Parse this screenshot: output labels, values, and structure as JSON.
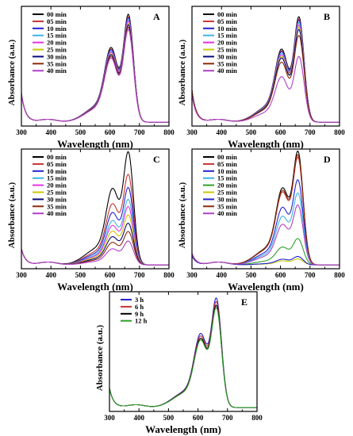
{
  "chart_data": [
    {
      "type": "line",
      "panel_label": "A",
      "xlabel": "Wavelength (nm)",
      "ylabel": "Absorbance (a.u.)",
      "xlim": [
        300,
        800
      ],
      "xticks": [
        300,
        400,
        500,
        600,
        700,
        800
      ],
      "y_tick_labels": false,
      "legend_position": "top-left",
      "peak_nm": 663,
      "shoulder_nm": 605,
      "series": [
        {
          "name": "00 min",
          "color": "#000000",
          "peak": 0.92,
          "uv": 0.25
        },
        {
          "name": "05 min",
          "color": "#c83232",
          "peak": 0.9,
          "uv": 0.25
        },
        {
          "name": "10 min",
          "color": "#2323d2",
          "peak": 0.89,
          "uv": 0.25
        },
        {
          "name": "15 min",
          "color": "#3cb4e6",
          "peak": 0.87,
          "uv": 0.25
        },
        {
          "name": "20 min",
          "color": "#e632e6",
          "peak": 0.86,
          "uv": 0.25
        },
        {
          "name": "25 min",
          "color": "#c8c800",
          "peak": 0.84,
          "uv": 0.25
        },
        {
          "name": "30 min",
          "color": "#0a0a7a",
          "peak": 0.83,
          "uv": 0.25
        },
        {
          "name": "35 min",
          "color": "#8b2a0a",
          "peak": 0.81,
          "uv": 0.25
        },
        {
          "name": "40 min",
          "color": "#b040c8",
          "peak": 0.79,
          "uv": 0.25
        }
      ]
    },
    {
      "type": "line",
      "panel_label": "B",
      "xlabel": "Wavelength (nm)",
      "ylabel": "Absorbance (a.u.)",
      "xlim": [
        300,
        800
      ],
      "xticks": [
        300,
        400,
        500,
        600,
        700,
        800
      ],
      "y_tick_labels": false,
      "legend_position": "top-left",
      "peak_nm": 663,
      "shoulder_nm": 605,
      "series": [
        {
          "name": "00 min",
          "color": "#000000",
          "peak": 0.9,
          "uv": 0.28
        },
        {
          "name": "05 min",
          "color": "#c83232",
          "peak": 0.88,
          "uv": 0.28
        },
        {
          "name": "10 min",
          "color": "#2323d2",
          "peak": 0.87,
          "uv": 0.28
        },
        {
          "name": "15 min",
          "color": "#3cb4e6",
          "peak": 0.85,
          "uv": 0.28
        },
        {
          "name": "20 min",
          "color": "#e632e6",
          "peak": 0.83,
          "uv": 0.28
        },
        {
          "name": "25 min",
          "color": "#c8c800",
          "peak": 0.81,
          "uv": 0.28
        },
        {
          "name": "30 min",
          "color": "#0a0a7a",
          "peak": 0.79,
          "uv": 0.28
        },
        {
          "name": "35 min",
          "color": "#8b2a0a",
          "peak": 0.74,
          "uv": 0.28
        },
        {
          "name": "40 min",
          "color": "#b040c8",
          "peak": 0.56,
          "uv": 0.24
        }
      ]
    },
    {
      "type": "line",
      "panel_label": "C",
      "xlabel": "Wavelength (nm)",
      "ylabel": "Absorbance (a.u.)",
      "xlim": [
        300,
        800
      ],
      "xticks": [
        300,
        400,
        500,
        600,
        700,
        800
      ],
      "y_tick_labels": false,
      "legend_position": "top-left",
      "peak_nm": 663,
      "shoulder_nm": 610,
      "series": [
        {
          "name": "00 min",
          "color": "#000000",
          "peak": 0.95,
          "uv": 0.14
        },
        {
          "name": "05 min",
          "color": "#c83232",
          "peak": 0.76,
          "uv": 0.14
        },
        {
          "name": "10 min",
          "color": "#2323d2",
          "peak": 0.65,
          "uv": 0.14
        },
        {
          "name": "15 min",
          "color": "#3cb4e6",
          "peak": 0.55,
          "uv": 0.14
        },
        {
          "name": "20 min",
          "color": "#e632e6",
          "peak": 0.49,
          "uv": 0.14
        },
        {
          "name": "25 min",
          "color": "#c8c800",
          "peak": 0.42,
          "uv": 0.14
        },
        {
          "name": "30 min",
          "color": "#0a0a7a",
          "peak": 0.35,
          "uv": 0.14
        },
        {
          "name": "35 min",
          "color": "#8b2a0a",
          "peak": 0.28,
          "uv": 0.14
        },
        {
          "name": "40 min",
          "color": "#b040c8",
          "peak": 0.2,
          "uv": 0.14
        }
      ]
    },
    {
      "type": "line",
      "panel_label": "D",
      "xlabel": "Wavelength (nm)",
      "ylabel": "Absorbance (a.u.)",
      "xlim": [
        300,
        800
      ],
      "xticks": [
        300,
        400,
        500,
        600,
        700,
        800
      ],
      "y_tick_labels": false,
      "legend_position": "top-left",
      "peak_nm": 660,
      "shoulder_nm": 608,
      "series": [
        {
          "name": "00 min",
          "color": "#000000",
          "peak": 0.95,
          "uv": 0.1
        },
        {
          "name": "05 min",
          "color": "#c83232",
          "peak": 0.9,
          "uv": 0.1
        },
        {
          "name": "10 min",
          "color": "#2323d2",
          "peak": 0.71,
          "uv": 0.1
        },
        {
          "name": "15 min",
          "color": "#3cb4e6",
          "peak": 0.6,
          "uv": 0.1
        },
        {
          "name": "20 min",
          "color": "#2ca02c",
          "peak": 0.22,
          "uv": 0.09
        },
        {
          "name": "25 min",
          "color": "#c8c800",
          "peak": 0.05,
          "uv": 0.08
        },
        {
          "name": "30 min",
          "color": "#2323d2",
          "peak": 0.07,
          "uv": 0.08
        },
        {
          "name": "35 min",
          "color": "#8b2a0a",
          "peak": 0.92,
          "uv": 0.1
        },
        {
          "name": "40 min",
          "color": "#b040c8",
          "peak": 0.5,
          "uv": 0.1
        }
      ]
    },
    {
      "type": "line",
      "panel_label": "E",
      "xlabel": "Wavelength (nm)",
      "ylabel": "Absorbance (a.u.)",
      "xlim": [
        300,
        800
      ],
      "xticks": [
        300,
        400,
        500,
        600,
        700,
        800
      ],
      "y_tick_labels": false,
      "legend_position": "top-left",
      "peak_nm": 663,
      "shoulder_nm": 610,
      "series": [
        {
          "name": "3 h",
          "color": "#2323d2",
          "peak": 0.92,
          "uv": 0.17
        },
        {
          "name": "6 h",
          "color": "#c83232",
          "peak": 0.89,
          "uv": 0.17
        },
        {
          "name": "9 h",
          "color": "#000000",
          "peak": 0.86,
          "uv": 0.17
        },
        {
          "name": "12 h",
          "color": "#2ca02c",
          "peak": 0.84,
          "uv": 0.17
        }
      ]
    }
  ]
}
